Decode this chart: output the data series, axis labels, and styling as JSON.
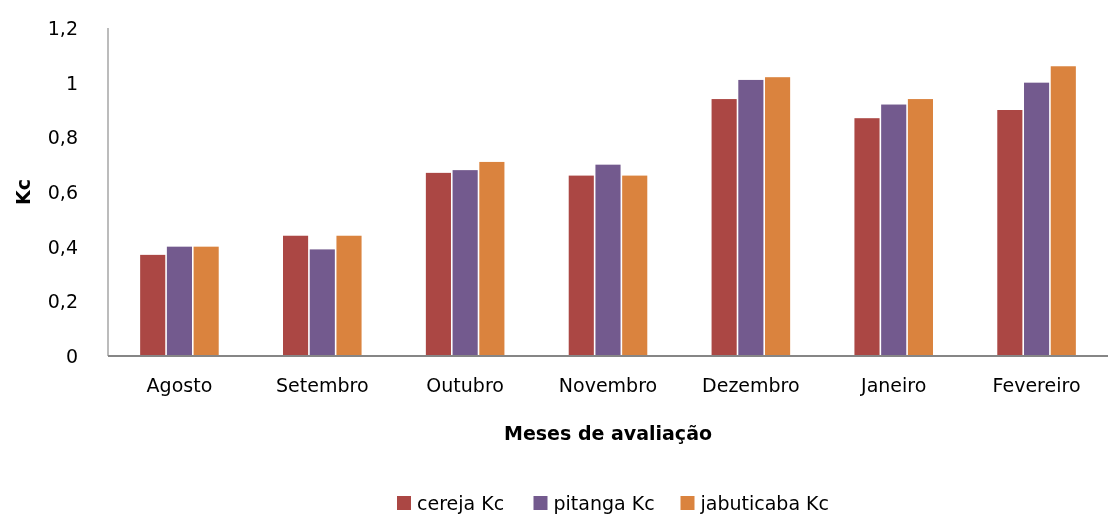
{
  "chart_data": {
    "type": "bar",
    "xlabel": "Meses de avaliação",
    "ylabel": "Kc",
    "categories": [
      "Agosto",
      "Setembro",
      "Outubro",
      "Novembro",
      "Dezembro",
      "Janeiro",
      "Fevereiro"
    ],
    "series": [
      {
        "name": "cereja Kc",
        "color": "#ab4744",
        "values": [
          0.37,
          0.44,
          0.67,
          0.66,
          0.94,
          0.87,
          0.9
        ]
      },
      {
        "name": "pitanga Kc",
        "color": "#735a8e",
        "values": [
          0.4,
          0.39,
          0.68,
          0.7,
          1.01,
          0.92,
          1.0
        ]
      },
      {
        "name": "jabuticaba Kc",
        "color": "#da833e",
        "values": [
          0.4,
          0.44,
          0.71,
          0.66,
          1.02,
          0.94,
          1.06
        ]
      }
    ],
    "ylim": [
      0,
      1.2
    ],
    "yticks": [
      {
        "value": 0,
        "label": "0"
      },
      {
        "value": 0.2,
        "label": "0,2"
      },
      {
        "value": 0.4,
        "label": "0,4"
      },
      {
        "value": 0.6,
        "label": "0,6"
      },
      {
        "value": 0.8,
        "label": "0,8"
      },
      {
        "value": 1,
        "label": "1"
      },
      {
        "value": 1.2,
        "label": "1,2"
      }
    ],
    "grid": false,
    "legend": "bottom"
  }
}
